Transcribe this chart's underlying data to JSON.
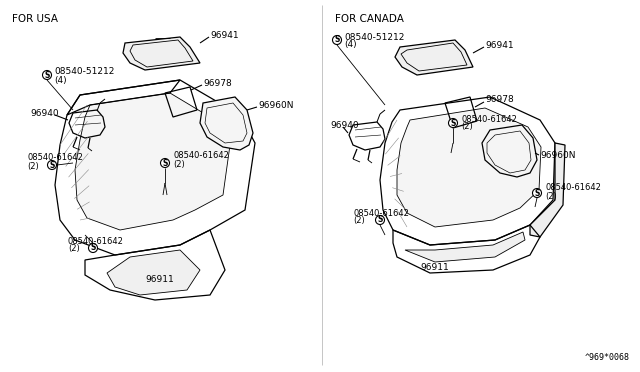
{
  "bg_color": "#ffffff",
  "left_label": "FOR USA",
  "right_label": "FOR CANADA",
  "watermark": "^969*0068",
  "fig_width": 6.4,
  "fig_height": 3.72,
  "dpi": 100,
  "label_96941": "96941",
  "label_96978": "96978",
  "label_96960N": "96960N",
  "label_96940": "96940",
  "label_96911": "96911",
  "label_screw1": "08540-51212",
  "label_screw1_qty": "(4)",
  "label_screw2": "08540-61642",
  "label_screw2_qty": "(2)"
}
